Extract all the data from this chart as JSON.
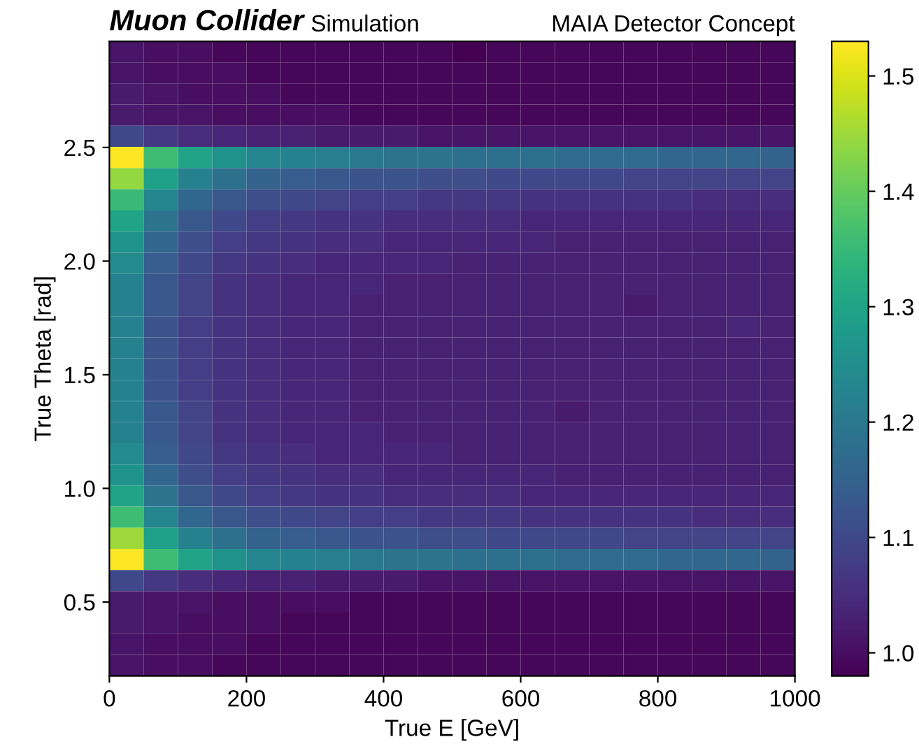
{
  "chart_data": {
    "type": "heatmap",
    "title": "Muon Collider",
    "subtitle": "Simulation",
    "annotations": [
      "MAIA Detector Concept"
    ],
    "xlabel": "True E [GeV]",
    "ylabel": "True Theta [rad]",
    "xlim": [
      0,
      1000
    ],
    "xticks": [
      0,
      200,
      400,
      600,
      800,
      1000
    ],
    "ylim": [
      0.175,
      2.967
    ],
    "yticks": [
      0.5,
      {
        "value": 1.0,
        "label": "1.0"
      },
      1.5,
      {
        "value": 2.0,
        "label": "2.0"
      },
      2.5
    ],
    "clim": [
      0.98,
      1.53
    ],
    "cticks": [
      {
        "value": 1.0,
        "label": "1.0"
      },
      1.1,
      1.2,
      1.3,
      1.4,
      1.5
    ],
    "x": [
      25,
      75,
      125,
      175,
      225,
      275,
      325,
      375,
      425,
      475,
      525,
      575,
      625,
      675,
      725,
      775,
      825,
      875,
      925,
      975
    ],
    "y": [
      2.92,
      2.828,
      2.735,
      2.642,
      2.549,
      2.456,
      2.363,
      2.269,
      2.176,
      2.083,
      1.99,
      1.897,
      1.804,
      1.711,
      1.618,
      1.524,
      1.431,
      1.338,
      1.245,
      1.152,
      1.059,
      0.966,
      0.873,
      0.78,
      0.687,
      0.594,
      0.501,
      0.407,
      0.314,
      0.221
    ],
    "cells": [
      [
        1.01,
        1.0,
        1.0,
        0.99,
        0.99,
        0.99,
        0.99,
        0.99,
        0.99,
        0.99,
        0.98,
        0.99,
        0.99,
        0.99,
        0.99,
        0.99,
        0.99,
        0.99,
        0.99,
        0.99
      ],
      [
        1.01,
        1.0,
        1.0,
        1.0,
        0.99,
        0.99,
        0.99,
        0.99,
        0.99,
        0.99,
        0.99,
        0.99,
        0.99,
        0.99,
        0.99,
        0.99,
        0.99,
        0.99,
        0.99,
        0.99
      ],
      [
        1.02,
        1.01,
        1.0,
        1.0,
        1.0,
        0.99,
        0.99,
        0.99,
        0.99,
        0.99,
        0.99,
        0.99,
        0.99,
        0.99,
        0.99,
        0.99,
        0.99,
        0.99,
        0.99,
        0.99
      ],
      [
        1.02,
        1.01,
        1.01,
        1.0,
        1.0,
        1.0,
        1.0,
        0.99,
        0.99,
        0.99,
        0.99,
        0.99,
        0.99,
        0.99,
        0.99,
        0.99,
        0.99,
        0.99,
        0.99,
        0.99
      ],
      [
        1.1,
        1.07,
        1.05,
        1.04,
        1.03,
        1.03,
        1.02,
        1.02,
        1.02,
        1.01,
        1.01,
        1.01,
        1.01,
        1.01,
        1.01,
        1.01,
        1.01,
        1.01,
        1.01,
        1.01
      ],
      [
        1.53,
        1.36,
        1.3,
        1.26,
        1.23,
        1.22,
        1.21,
        1.2,
        1.19,
        1.19,
        1.18,
        1.18,
        1.18,
        1.17,
        1.17,
        1.17,
        1.16,
        1.16,
        1.16,
        1.15
      ],
      [
        1.44,
        1.29,
        1.22,
        1.18,
        1.15,
        1.14,
        1.13,
        1.12,
        1.12,
        1.11,
        1.11,
        1.1,
        1.1,
        1.1,
        1.1,
        1.09,
        1.09,
        1.09,
        1.09,
        1.09
      ],
      [
        1.35,
        1.23,
        1.16,
        1.13,
        1.11,
        1.1,
        1.09,
        1.08,
        1.08,
        1.07,
        1.07,
        1.07,
        1.06,
        1.06,
        1.06,
        1.06,
        1.06,
        1.05,
        1.05,
        1.05
      ],
      [
        1.3,
        1.19,
        1.13,
        1.1,
        1.08,
        1.07,
        1.06,
        1.06,
        1.05,
        1.05,
        1.05,
        1.05,
        1.04,
        1.04,
        1.04,
        1.04,
        1.04,
        1.04,
        1.04,
        1.04
      ],
      [
        1.26,
        1.16,
        1.11,
        1.08,
        1.07,
        1.06,
        1.05,
        1.05,
        1.04,
        1.04,
        1.04,
        1.04,
        1.04,
        1.03,
        1.03,
        1.03,
        1.03,
        1.03,
        1.03,
        1.03
      ],
      [
        1.24,
        1.14,
        1.1,
        1.07,
        1.06,
        1.05,
        1.04,
        1.04,
        1.04,
        1.04,
        1.03,
        1.03,
        1.03,
        1.03,
        1.03,
        1.03,
        1.03,
        1.03,
        1.03,
        1.03
      ],
      [
        1.22,
        1.13,
        1.09,
        1.06,
        1.05,
        1.04,
        1.04,
        1.04,
        1.03,
        1.03,
        1.03,
        1.03,
        1.03,
        1.03,
        1.03,
        1.03,
        1.03,
        1.03,
        1.03,
        1.03
      ],
      [
        1.22,
        1.13,
        1.09,
        1.06,
        1.05,
        1.04,
        1.04,
        1.03,
        1.03,
        1.03,
        1.03,
        1.03,
        1.03,
        1.03,
        1.03,
        1.02,
        1.03,
        1.03,
        1.03,
        1.03
      ],
      [
        1.22,
        1.12,
        1.08,
        1.06,
        1.05,
        1.04,
        1.04,
        1.03,
        1.03,
        1.03,
        1.03,
        1.03,
        1.03,
        1.03,
        1.03,
        1.03,
        1.03,
        1.03,
        1.04,
        1.03
      ],
      [
        1.22,
        1.12,
        1.08,
        1.06,
        1.05,
        1.04,
        1.04,
        1.03,
        1.03,
        1.03,
        1.03,
        1.03,
        1.03,
        1.03,
        1.03,
        1.03,
        1.03,
        1.03,
        1.03,
        1.03
      ],
      [
        1.22,
        1.12,
        1.08,
        1.06,
        1.05,
        1.04,
        1.04,
        1.03,
        1.03,
        1.03,
        1.03,
        1.03,
        1.03,
        1.03,
        1.03,
        1.03,
        1.03,
        1.03,
        1.03,
        1.03
      ],
      [
        1.22,
        1.12,
        1.08,
        1.06,
        1.05,
        1.04,
        1.04,
        1.03,
        1.03,
        1.03,
        1.03,
        1.03,
        1.03,
        1.03,
        1.03,
        1.03,
        1.03,
        1.03,
        1.03,
        1.03
      ],
      [
        1.22,
        1.13,
        1.09,
        1.06,
        1.05,
        1.04,
        1.04,
        1.03,
        1.03,
        1.03,
        1.03,
        1.03,
        1.03,
        1.02,
        1.03,
        1.03,
        1.03,
        1.03,
        1.03,
        1.03
      ],
      [
        1.22,
        1.13,
        1.09,
        1.06,
        1.05,
        1.04,
        1.04,
        1.04,
        1.03,
        1.03,
        1.03,
        1.03,
        1.03,
        1.03,
        1.03,
        1.03,
        1.03,
        1.03,
        1.03,
        1.03
      ],
      [
        1.24,
        1.14,
        1.1,
        1.07,
        1.06,
        1.05,
        1.04,
        1.04,
        1.04,
        1.04,
        1.03,
        1.03,
        1.03,
        1.03,
        1.03,
        1.03,
        1.03,
        1.03,
        1.03,
        1.03
      ],
      [
        1.26,
        1.16,
        1.11,
        1.08,
        1.07,
        1.06,
        1.05,
        1.05,
        1.04,
        1.04,
        1.04,
        1.04,
        1.04,
        1.03,
        1.03,
        1.03,
        1.03,
        1.03,
        1.03,
        1.03
      ],
      [
        1.3,
        1.19,
        1.13,
        1.1,
        1.08,
        1.07,
        1.06,
        1.06,
        1.05,
        1.05,
        1.05,
        1.05,
        1.04,
        1.04,
        1.04,
        1.04,
        1.04,
        1.04,
        1.04,
        1.04
      ],
      [
        1.36,
        1.23,
        1.16,
        1.13,
        1.11,
        1.1,
        1.09,
        1.08,
        1.08,
        1.07,
        1.07,
        1.07,
        1.06,
        1.06,
        1.06,
        1.06,
        1.06,
        1.05,
        1.05,
        1.05
      ],
      [
        1.45,
        1.29,
        1.22,
        1.18,
        1.15,
        1.14,
        1.13,
        1.12,
        1.12,
        1.11,
        1.11,
        1.1,
        1.1,
        1.1,
        1.1,
        1.09,
        1.09,
        1.09,
        1.09,
        1.09
      ],
      [
        1.53,
        1.36,
        1.3,
        1.26,
        1.23,
        1.22,
        1.21,
        1.2,
        1.19,
        1.19,
        1.18,
        1.18,
        1.18,
        1.17,
        1.17,
        1.17,
        1.16,
        1.16,
        1.16,
        1.15
      ],
      [
        1.1,
        1.07,
        1.05,
        1.04,
        1.03,
        1.03,
        1.02,
        1.02,
        1.02,
        1.01,
        1.01,
        1.01,
        1.01,
        1.01,
        1.01,
        1.01,
        1.01,
        1.01,
        1.01,
        1.01
      ],
      [
        1.02,
        1.01,
        1.01,
        1.0,
        1.0,
        1.0,
        1.0,
        0.99,
        0.99,
        0.99,
        0.99,
        0.99,
        0.99,
        0.99,
        0.99,
        0.99,
        0.99,
        0.99,
        0.99,
        0.99
      ],
      [
        1.02,
        1.01,
        1.0,
        1.0,
        1.0,
        0.99,
        0.99,
        0.99,
        0.99,
        0.99,
        0.99,
        0.99,
        0.99,
        0.99,
        0.99,
        0.99,
        0.99,
        0.99,
        0.99,
        0.99
      ],
      [
        1.01,
        1.0,
        1.0,
        1.0,
        0.99,
        0.99,
        0.99,
        0.99,
        0.99,
        0.99,
        0.99,
        0.99,
        0.99,
        0.99,
        0.99,
        0.99,
        0.99,
        0.99,
        0.99,
        0.99
      ],
      [
        1.01,
        1.0,
        1.0,
        0.99,
        0.99,
        0.99,
        0.99,
        0.99,
        0.99,
        0.99,
        0.99,
        0.99,
        0.99,
        0.99,
        0.99,
        0.99,
        0.99,
        0.99,
        0.99,
        0.99
      ]
    ]
  }
}
